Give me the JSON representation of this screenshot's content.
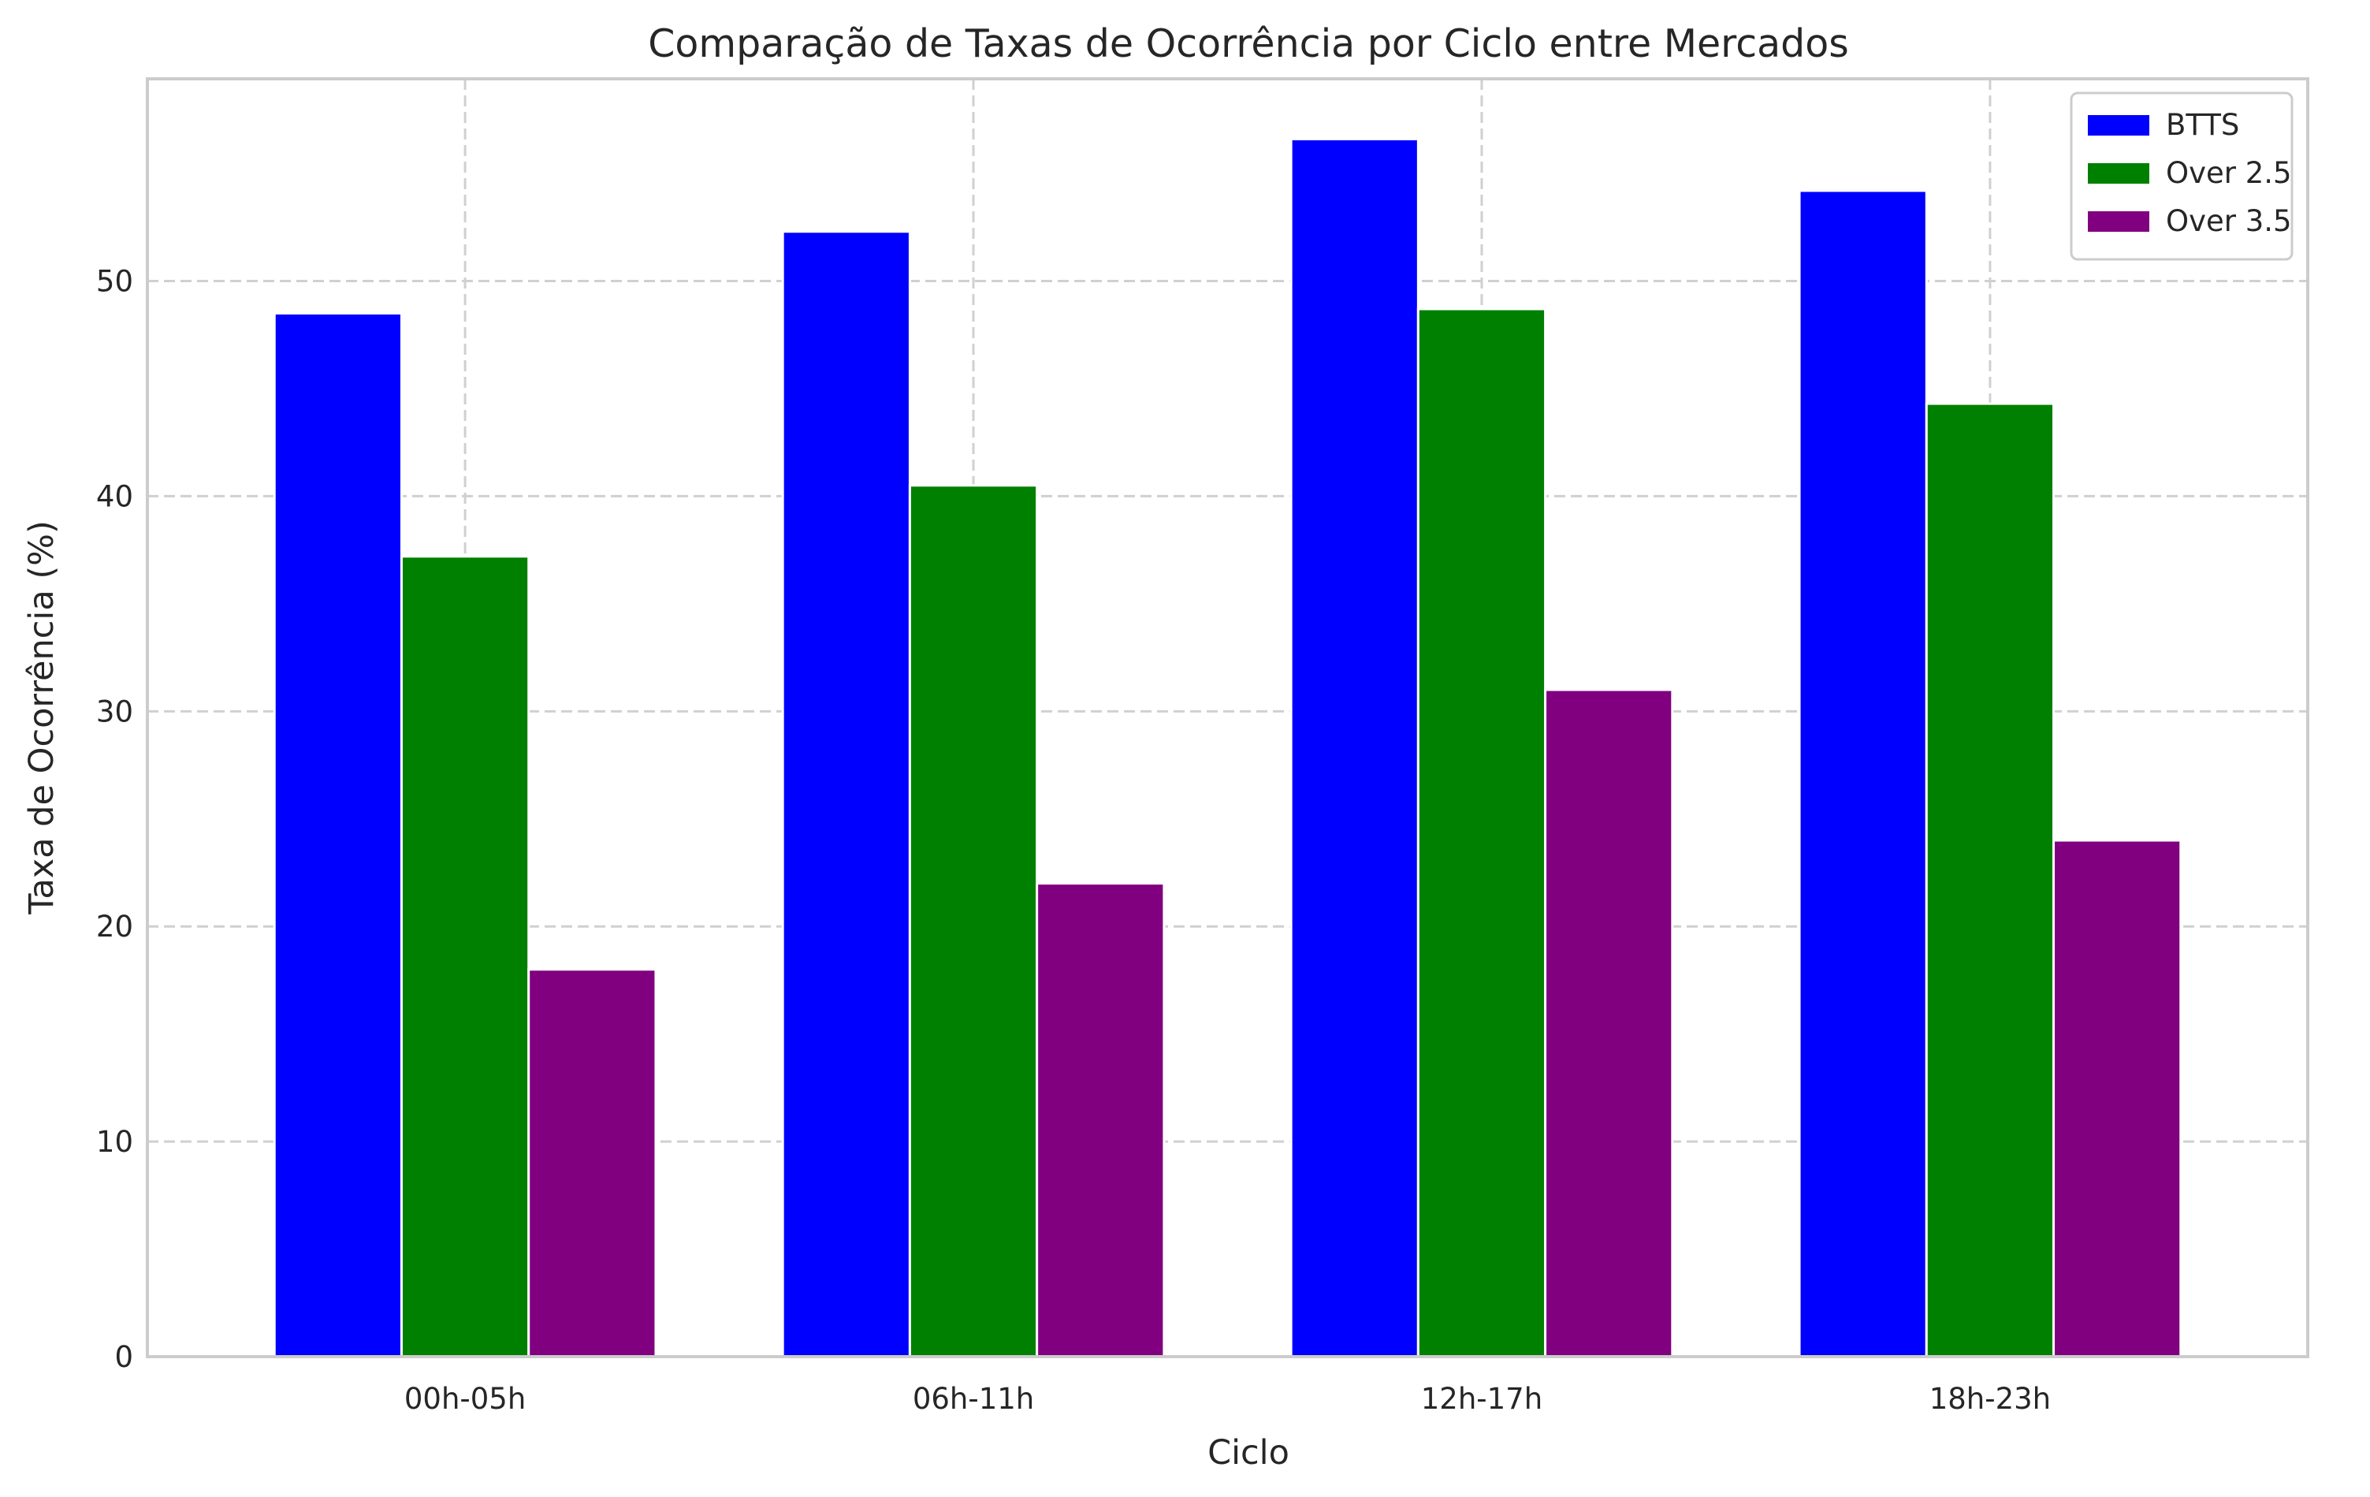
{
  "chart_data": {
    "type": "bar",
    "title": "Comparação de Taxas de Ocorrência por Ciclo entre Mercados",
    "xlabel": "Ciclo",
    "ylabel": "Taxa de Ocorrência (%)",
    "categories": [
      "00h-05h",
      "06h-11h",
      "12h-17h",
      "18h-23h"
    ],
    "series": [
      {
        "name": "BTTS",
        "color": "#0000ff",
        "values": [
          48.5,
          52.3,
          56.6,
          54.2
        ]
      },
      {
        "name": "Over 2.5",
        "color": "#008000",
        "values": [
          37.2,
          40.5,
          48.7,
          44.3
        ]
      },
      {
        "name": "Over 3.5",
        "color": "#800080",
        "values": [
          18.0,
          22.0,
          31.0,
          24.0
        ]
      }
    ],
    "ylim": [
      0,
      59.4
    ],
    "yticks": [
      0,
      10,
      20,
      30,
      40,
      50
    ],
    "grid": true,
    "legend_position": "top-right"
  }
}
